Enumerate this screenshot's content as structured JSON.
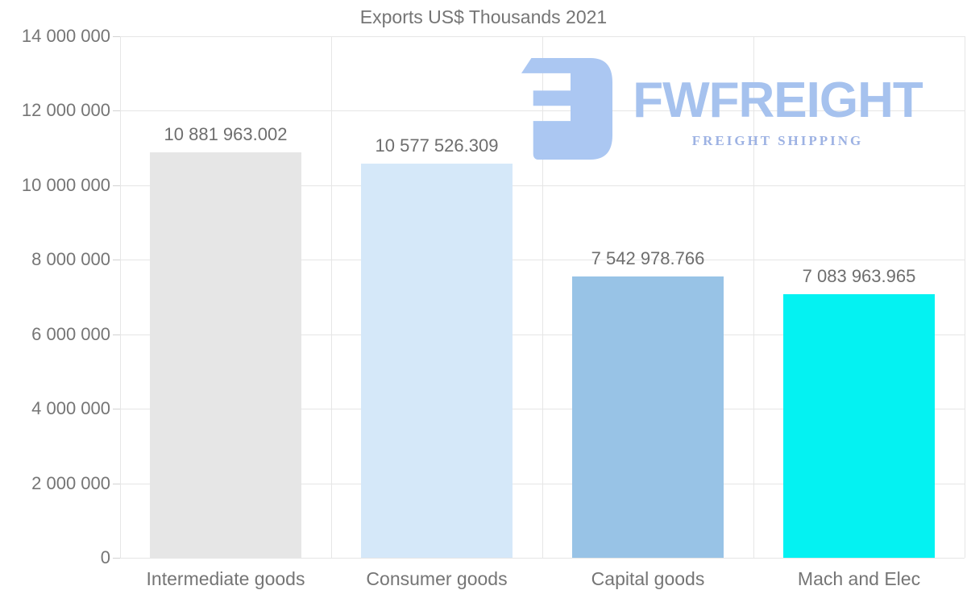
{
  "chart_data": {
    "type": "bar",
    "title": "Exports US$ Thousands 2021",
    "categories": [
      "Intermediate goods",
      "Consumer goods",
      "Capital goods",
      "Mach and Elec"
    ],
    "values": [
      10881963.002,
      10577526.309,
      7542978.766,
      7083963.965
    ],
    "value_labels": [
      "10 881 963.002",
      "10 577 526.309",
      "7 542 978.766",
      "7 083 963.965"
    ],
    "bar_colors": [
      "#e6e6e6",
      "#d5e8f9",
      "#98c3e6",
      "#04f2f2"
    ],
    "xlabel": "",
    "ylabel": "",
    "ylim": [
      0,
      14000000
    ],
    "yticks": [
      {
        "value": 0,
        "label": "0"
      },
      {
        "value": 2000000,
        "label": "2 000 000"
      },
      {
        "value": 4000000,
        "label": "4 000 000"
      },
      {
        "value": 6000000,
        "label": "6 000 000"
      },
      {
        "value": 8000000,
        "label": "8 000 000"
      },
      {
        "value": 10000000,
        "label": "10 000 000"
      },
      {
        "value": 12000000,
        "label": "12 000 000"
      },
      {
        "value": 14000000,
        "label": "14 000 000"
      }
    ],
    "grid": "horizontal gridlines at each y tick, vertical gridlines at category boundaries",
    "legend": "none"
  },
  "watermark": {
    "name": "FWFREIGHT",
    "tagline": "FREIGHT SHIPPING",
    "icon": "fwfreight-logo-icon",
    "colors": {
      "icon": "#abc7f2",
      "name": "#a6c2ee",
      "tagline": "#9db2e3"
    }
  },
  "styles": {
    "background": "#ffffff",
    "title_color": "#757575",
    "axis_label_color": "#757575",
    "value_label_color": "#6e6e6e",
    "gridline_color": "#e6e6e6"
  }
}
